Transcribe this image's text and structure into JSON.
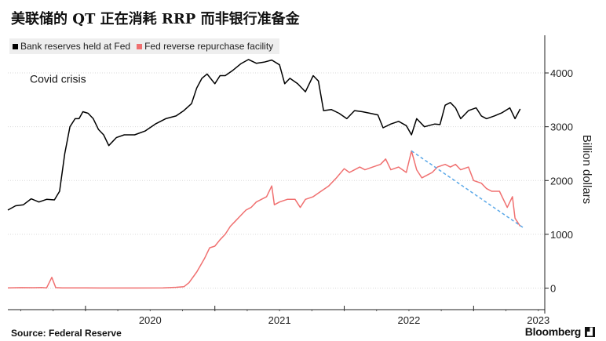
{
  "header": {
    "title": "美联储的 QT 正在消耗 RRP 而非银行准备金"
  },
  "footer": {
    "source": "Source: Federal Reserve",
    "brand": "Bloomberg",
    "brand_icon": "bloomberg-chart-icon"
  },
  "colors": {
    "reserves": "#000000",
    "rrp": "#f07070",
    "trend": "#5aa8e8",
    "gridline": "#d9d9d9"
  },
  "chart_data": {
    "type": "line",
    "ylabel": "Billion dollars",
    "ylim": [
      -400,
      4700
    ],
    "xlim": [
      2019.4,
      2023.55
    ],
    "y_ticks": [
      {
        "value": 0,
        "label": "0"
      },
      {
        "value": 1000,
        "label": "1000"
      },
      {
        "value": 2000,
        "label": "2000"
      },
      {
        "value": 3000,
        "label": "3000"
      },
      {
        "value": 4000,
        "label": "4000"
      }
    ],
    "x_ticks": [
      {
        "value": 2020.0,
        "label": "2020"
      },
      {
        "value": 2021.0,
        "label": "2021"
      },
      {
        "value": 2022.0,
        "label": "2022"
      },
      {
        "value": 2023.0,
        "label": "2023"
      }
    ],
    "x_boundaries": [
      2020,
      2021,
      2022,
      2023
    ],
    "annotation": {
      "text": "Covid crisis",
      "x": 2019.57,
      "y": 3820
    },
    "legend": [
      {
        "name": "Bank reserves held at Fed",
        "color": "#000000"
      },
      {
        "name": "Fed reverse repurchase facility",
        "color": "#f07070"
      }
    ],
    "series": [
      {
        "name": "Bank reserves held at Fed",
        "color": "#000000",
        "points": [
          [
            2019.4,
            1450
          ],
          [
            2019.46,
            1530
          ],
          [
            2019.52,
            1550
          ],
          [
            2019.58,
            1660
          ],
          [
            2019.64,
            1600
          ],
          [
            2019.7,
            1650
          ],
          [
            2019.76,
            1640
          ],
          [
            2019.8,
            1800
          ],
          [
            2019.84,
            2500
          ],
          [
            2019.88,
            3000
          ],
          [
            2019.92,
            3150
          ],
          [
            2019.95,
            3150
          ],
          [
            2019.98,
            3280
          ],
          [
            2020.02,
            3250
          ],
          [
            2020.06,
            3150
          ],
          [
            2020.1,
            2950
          ],
          [
            2020.14,
            2850
          ],
          [
            2020.18,
            2650
          ],
          [
            2020.24,
            2800
          ],
          [
            2020.3,
            2850
          ],
          [
            2020.38,
            2850
          ],
          [
            2020.46,
            2920
          ],
          [
            2020.54,
            3050
          ],
          [
            2020.62,
            3150
          ],
          [
            2020.7,
            3200
          ],
          [
            2020.76,
            3300
          ],
          [
            2020.82,
            3430
          ],
          [
            2020.86,
            3720
          ],
          [
            2020.9,
            3900
          ],
          [
            2020.94,
            3980
          ],
          [
            2021.0,
            3800
          ],
          [
            2021.04,
            3950
          ],
          [
            2021.08,
            3950
          ],
          [
            2021.14,
            4050
          ],
          [
            2021.2,
            4170
          ],
          [
            2021.26,
            4250
          ],
          [
            2021.32,
            4180
          ],
          [
            2021.38,
            4200
          ],
          [
            2021.44,
            4240
          ],
          [
            2021.5,
            4150
          ],
          [
            2021.54,
            3800
          ],
          [
            2021.58,
            3900
          ],
          [
            2021.64,
            3800
          ],
          [
            2021.7,
            3650
          ],
          [
            2021.76,
            3950
          ],
          [
            2021.8,
            3850
          ],
          [
            2021.84,
            3300
          ],
          [
            2021.9,
            3320
          ],
          [
            2021.96,
            3250
          ],
          [
            2022.02,
            3150
          ],
          [
            2022.08,
            3300
          ],
          [
            2022.14,
            3280
          ],
          [
            2022.2,
            3250
          ],
          [
            2022.26,
            3220
          ],
          [
            2022.3,
            2980
          ],
          [
            2022.36,
            3050
          ],
          [
            2022.42,
            3100
          ],
          [
            2022.48,
            3020
          ],
          [
            2022.52,
            2850
          ],
          [
            2022.56,
            3150
          ],
          [
            2022.62,
            3000
          ],
          [
            2022.7,
            3050
          ],
          [
            2022.74,
            3040
          ],
          [
            2022.78,
            3400
          ],
          [
            2022.82,
            3450
          ],
          [
            2022.86,
            3350
          ],
          [
            2022.9,
            3150
          ],
          [
            2022.96,
            3300
          ],
          [
            2023.02,
            3350
          ],
          [
            2023.06,
            3200
          ],
          [
            2023.1,
            3150
          ],
          [
            2023.16,
            3200
          ],
          [
            2023.22,
            3260
          ],
          [
            2023.28,
            3350
          ],
          [
            2023.32,
            3150
          ],
          [
            2023.36,
            3330
          ]
        ]
      },
      {
        "name": "Fed reverse repurchase facility",
        "color": "#f07070",
        "points": [
          [
            2019.4,
            5
          ],
          [
            2019.5,
            10
          ],
          [
            2019.6,
            8
          ],
          [
            2019.66,
            12
          ],
          [
            2019.7,
            5
          ],
          [
            2019.74,
            200
          ],
          [
            2019.77,
            10
          ],
          [
            2019.82,
            5
          ],
          [
            2020.0,
            3
          ],
          [
            2020.2,
            2
          ],
          [
            2020.4,
            2
          ],
          [
            2020.6,
            3
          ],
          [
            2020.7,
            15
          ],
          [
            2020.76,
            25
          ],
          [
            2020.8,
            100
          ],
          [
            2020.86,
            300
          ],
          [
            2020.92,
            550
          ],
          [
            2020.96,
            750
          ],
          [
            2021.0,
            780
          ],
          [
            2021.04,
            900
          ],
          [
            2021.08,
            1000
          ],
          [
            2021.12,
            1150
          ],
          [
            2021.16,
            1250
          ],
          [
            2021.2,
            1350
          ],
          [
            2021.24,
            1450
          ],
          [
            2021.28,
            1500
          ],
          [
            2021.32,
            1600
          ],
          [
            2021.36,
            1650
          ],
          [
            2021.4,
            1700
          ],
          [
            2021.44,
            1900
          ],
          [
            2021.46,
            1550
          ],
          [
            2021.5,
            1600
          ],
          [
            2021.56,
            1650
          ],
          [
            2021.62,
            1650
          ],
          [
            2021.66,
            1500
          ],
          [
            2021.7,
            1650
          ],
          [
            2021.76,
            1700
          ],
          [
            2021.82,
            1800
          ],
          [
            2021.88,
            1900
          ],
          [
            2021.94,
            2050
          ],
          [
            2022.0,
            2220
          ],
          [
            2022.04,
            2150
          ],
          [
            2022.08,
            2200
          ],
          [
            2022.12,
            2250
          ],
          [
            2022.16,
            2200
          ],
          [
            2022.22,
            2250
          ],
          [
            2022.28,
            2300
          ],
          [
            2022.32,
            2400
          ],
          [
            2022.36,
            2200
          ],
          [
            2022.42,
            2250
          ],
          [
            2022.48,
            2150
          ],
          [
            2022.52,
            2550
          ],
          [
            2022.56,
            2200
          ],
          [
            2022.6,
            2050
          ],
          [
            2022.64,
            2100
          ],
          [
            2022.68,
            2150
          ],
          [
            2022.72,
            2250
          ],
          [
            2022.78,
            2300
          ],
          [
            2022.82,
            2250
          ],
          [
            2022.86,
            2300
          ],
          [
            2022.9,
            2200
          ],
          [
            2022.96,
            2250
          ],
          [
            2023.0,
            2000
          ],
          [
            2023.06,
            1950
          ],
          [
            2023.1,
            1850
          ],
          [
            2023.14,
            1800
          ],
          [
            2023.2,
            1800
          ],
          [
            2023.26,
            1500
          ],
          [
            2023.3,
            1700
          ],
          [
            2023.32,
            1300
          ],
          [
            2023.36,
            1150
          ]
        ]
      }
    ],
    "trendline": {
      "from": [
        2022.52,
        2550
      ],
      "to": [
        2023.38,
        1130
      ],
      "color": "#5aa8e8",
      "dashed": true
    }
  }
}
